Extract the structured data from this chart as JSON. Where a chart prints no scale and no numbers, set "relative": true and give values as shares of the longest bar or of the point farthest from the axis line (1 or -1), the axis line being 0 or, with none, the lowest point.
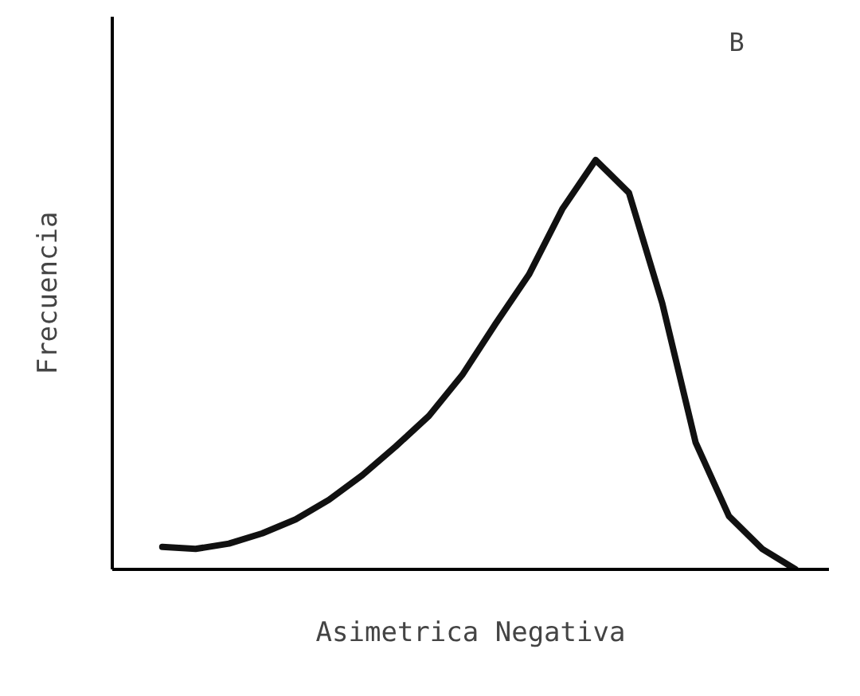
{
  "chart_data": {
    "type": "line",
    "relative": true,
    "xlabel": "Asimetrica Negativa",
    "ylabel": "Frecuencia",
    "annotations": [
      "B"
    ],
    "categories": [
      null,
      null,
      null,
      null,
      null,
      null,
      null,
      null,
      null,
      null,
      null,
      null,
      null,
      null,
      null,
      null,
      null,
      null,
      null,
      null
    ],
    "series": [
      {
        "color": "#111111",
        "values": [
          0.055,
          0.05,
          0.063,
          0.088,
          0.122,
          0.17,
          0.23,
          0.3,
          0.375,
          0.475,
          0.6,
          0.72,
          0.88,
          1.0,
          0.92,
          0.65,
          0.31,
          0.13,
          0.05,
          0.0
        ]
      }
    ],
    "marker": "none",
    "line_style": "solid"
  }
}
